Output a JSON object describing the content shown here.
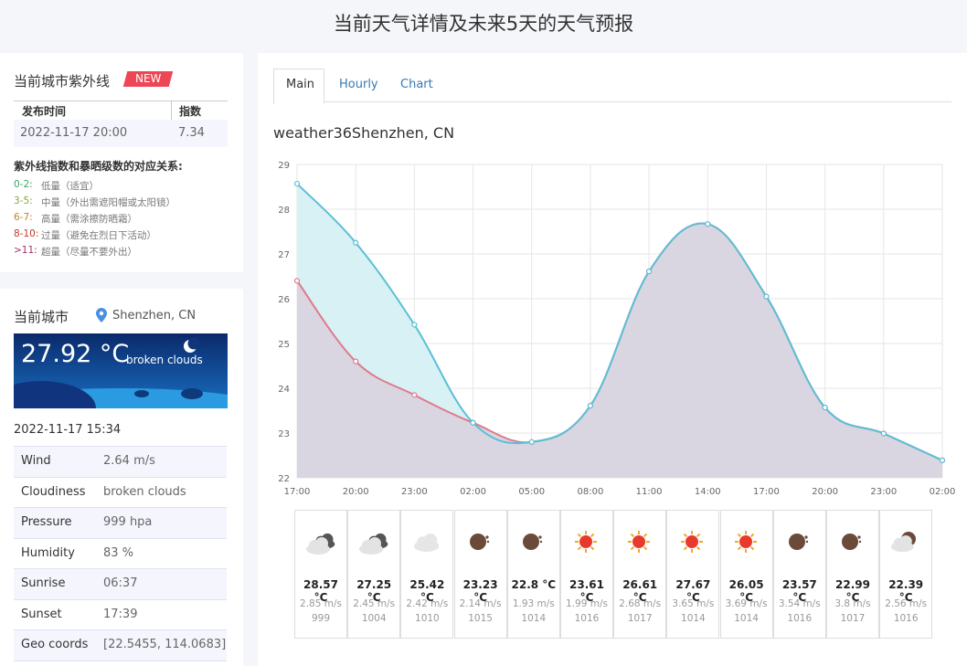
{
  "header": {
    "title": "当前天气详情及未来5天的天气预报"
  },
  "uv": {
    "title": "当前城市紫外线",
    "badge": "NEW",
    "table": {
      "headers": [
        "发布时间",
        "指数"
      ],
      "rows": [
        [
          "2022-11-17 20:00",
          "7.34"
        ]
      ]
    },
    "legend_title": "紫外线指数和暴晒级数的对应关系:",
    "levels": [
      {
        "range": "0-2:",
        "text": "低量（适宜）",
        "color": "#3aa564"
      },
      {
        "range": "3-5:",
        "text": "中量（外出需遮阳帽或太阳镜）",
        "color": "#8aa53a"
      },
      {
        "range": "6-7:",
        "text": "高量（需涂擦防晒霜）",
        "color": "#b8862b"
      },
      {
        "range": "8-10:",
        "text": "过量（避免在烈日下活动）",
        "color": "#c0392b"
      },
      {
        "range": ">11:",
        "text": "超量（尽量不要外出）",
        "color": "#a0306a"
      }
    ]
  },
  "city": {
    "title": "当前城市",
    "location": "Shenzhen, CN",
    "temp": "27.92 °C",
    "desc": "broken clouds",
    "time": "2022-11-17 15:34",
    "rows": [
      [
        "Wind",
        "2.64 m/s"
      ],
      [
        "Cloudiness",
        "broken clouds"
      ],
      [
        "Pressure",
        "999 hpa"
      ],
      [
        "Humidity",
        "83 %"
      ],
      [
        "Sunrise",
        "06:37"
      ],
      [
        "Sunset",
        "17:39"
      ],
      [
        "Geo coords",
        "[22.5455, 114.0683]"
      ]
    ]
  },
  "tabs": [
    "Main",
    "Hourly",
    "Chart"
  ],
  "chart_data": {
    "type": "line",
    "title": "weather36Shenzhen, CN",
    "categories": [
      "17:00",
      "20:00",
      "23:00",
      "02:00",
      "05:00",
      "08:00",
      "11:00",
      "14:00",
      "17:00",
      "20:00",
      "23:00",
      "02:00"
    ],
    "series": [
      {
        "color": "#5bbfd6",
        "fill": "#d8f1f5",
        "values": [
          28.57,
          27.25,
          25.42,
          23.23,
          22.8,
          23.61,
          26.61,
          27.67,
          26.05,
          23.57,
          22.99,
          22.39
        ]
      },
      {
        "color": "#e07a8c",
        "fill": "#d9d6e1",
        "values": [
          26.4,
          24.6,
          23.85,
          23.23,
          22.8,
          23.61,
          26.61,
          27.67,
          26.05,
          23.57,
          22.99,
          22.39
        ]
      }
    ],
    "ylim": [
      22,
      29
    ],
    "yticks": [
      22,
      23,
      24,
      25,
      26,
      27,
      28,
      29
    ],
    "grid": true
  },
  "forecast": [
    {
      "icon": "overcast",
      "temp": "28.57 °C",
      "wind": "2.85 m/s",
      "pressure": "999"
    },
    {
      "icon": "overcast",
      "temp": "27.25 °C",
      "wind": "2.45 m/s",
      "pressure": "1004"
    },
    {
      "icon": "cloud",
      "temp": "25.42 °C",
      "wind": "2.42 m/s",
      "pressure": "1010"
    },
    {
      "icon": "moon",
      "temp": "23.23 °C",
      "wind": "2.14 m/s",
      "pressure": "1015"
    },
    {
      "icon": "moon",
      "temp": "22.8 °C",
      "wind": "1.93 m/s",
      "pressure": "1014"
    },
    {
      "icon": "sun",
      "temp": "23.61 °C",
      "wind": "1.99 m/s",
      "pressure": "1016"
    },
    {
      "icon": "sun",
      "temp": "26.61 °C",
      "wind": "2.68 m/s",
      "pressure": "1017"
    },
    {
      "icon": "sun",
      "temp": "27.67 °C",
      "wind": "3.65 m/s",
      "pressure": "1014"
    },
    {
      "icon": "sun",
      "temp": "26.05 °C",
      "wind": "3.69 m/s",
      "pressure": "1014"
    },
    {
      "icon": "moon",
      "temp": "23.57 °C",
      "wind": "3.54 m/s",
      "pressure": "1016"
    },
    {
      "icon": "moon",
      "temp": "22.99 °C",
      "wind": "3.8 m/s",
      "pressure": "1017"
    },
    {
      "icon": "moon-cloud",
      "temp": "22.39 °C",
      "wind": "2.56 m/s",
      "pressure": "1016"
    }
  ]
}
